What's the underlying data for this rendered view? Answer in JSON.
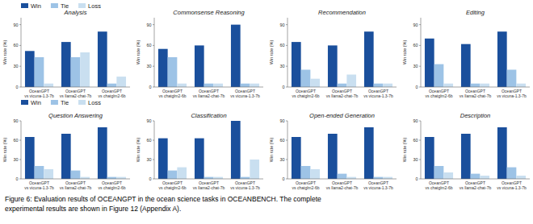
{
  "chart_data": [
    {
      "type": "bar",
      "title": "Analysis",
      "y_label": "Win rate (%)",
      "categories": [
        "OceanGPT\nvs vicuna-1.3-7b",
        "OceanGPT\nvs llama2-chat-7b",
        "OceanGPT\nvs chatglm2-6b"
      ],
      "series": [
        {
          "name": "Win",
          "color": "#1a4f9c",
          "values": [
            52,
            65,
            80
          ]
        },
        {
          "name": "Tie",
          "color": "#9dc3e6",
          "values": [
            43,
            43,
            5
          ]
        },
        {
          "name": "Loss",
          "color": "#c9dff0",
          "values": [
            5,
            50,
            15
          ]
        }
      ],
      "ylim": [
        0,
        100
      ],
      "yticks": [
        0,
        30,
        60,
        90
      ],
      "legend": "upper left"
    },
    {
      "type": "bar",
      "title": "Commonsense Reasoning",
      "y_label": "Win rate (%)",
      "categories": [
        "OceanGPT\nvs chatglm2-6b",
        "OceanGPT\nvs llama2-chat-7b",
        "OceanGPT\nvs vicuna-1.3-7b"
      ],
      "series": [
        {
          "name": "Win",
          "color": "#1a4f9c",
          "values": [
            55,
            60,
            90
          ]
        },
        {
          "name": "Tie",
          "color": "#9dc3e6",
          "values": [
            43,
            5,
            5
          ]
        },
        {
          "name": "Loss",
          "color": "#c9dff0",
          "values": [
            5,
            5,
            5
          ]
        }
      ],
      "ylim": [
        0,
        100
      ],
      "yticks": [
        0,
        30,
        60,
        90
      ]
    },
    {
      "type": "bar",
      "title": "Recommendation",
      "y_label": "Win rate (%)",
      "categories": [
        "OceanGPT\nvs chatglm2-6b",
        "OceanGPT\nvs llama2-chat-7b",
        "OceanGPT\nvs vicuna-1.3-7b"
      ],
      "series": [
        {
          "name": "Win",
          "color": "#1a4f9c",
          "values": [
            65,
            60,
            80
          ]
        },
        {
          "name": "Tie",
          "color": "#9dc3e6",
          "values": [
            25,
            5,
            5
          ]
        },
        {
          "name": "Loss",
          "color": "#c9dff0",
          "values": [
            12,
            18,
            5
          ]
        }
      ],
      "ylim": [
        0,
        100
      ],
      "yticks": [
        0,
        30,
        60,
        90
      ]
    },
    {
      "type": "bar",
      "title": "Editing",
      "y_label": "Win rate (%)",
      "categories": [
        "OceanGPT\nvs chatglm2-6b",
        "OceanGPT\nvs llama2-chat-7b",
        "OceanGPT\nvs vicuna-1.3-7b"
      ],
      "series": [
        {
          "name": "Win",
          "color": "#1a4f9c",
          "values": [
            70,
            62,
            80
          ]
        },
        {
          "name": "Tie",
          "color": "#9dc3e6",
          "values": [
            33,
            5,
            25
          ]
        },
        {
          "name": "Loss",
          "color": "#c9dff0",
          "values": [
            5,
            5,
            5
          ]
        }
      ],
      "ylim": [
        0,
        100
      ],
      "yticks": [
        0,
        30,
        60,
        90
      ]
    },
    {
      "type": "bar",
      "title": "Question Answering",
      "y_label": "Win rate (%)",
      "categories": [
        "OceanGPT\nvs vicuna-1.3-7b",
        "OceanGPT\nvs llama2-chat-7b",
        "OceanGPT\nvs chatglm2-6b"
      ],
      "series": [
        {
          "name": "Win",
          "color": "#1a4f9c",
          "values": [
            65,
            70,
            80
          ]
        },
        {
          "name": "Tie",
          "color": "#9dc3e6",
          "values": [
            20,
            13,
            3
          ]
        },
        {
          "name": "Loss",
          "color": "#c9dff0",
          "values": [
            15,
            3,
            3
          ]
        }
      ],
      "ylim": [
        0,
        90
      ],
      "yticks": [
        0,
        30,
        60,
        90
      ],
      "legend": "upper left"
    },
    {
      "type": "bar",
      "title": "Classification",
      "y_label": "Win rate (%)",
      "categories": [
        "OceanGPT\nvs chatglm2-6b",
        "OceanGPT\nvs llama2-chat-7b",
        "OceanGPT\nvs vicuna-1.3-7b"
      ],
      "series": [
        {
          "name": "Win",
          "color": "#1a4f9c",
          "values": [
            63,
            63,
            90
          ]
        },
        {
          "name": "Tie",
          "color": "#9dc3e6",
          "values": [
            13,
            3,
            3
          ]
        },
        {
          "name": "Loss",
          "color": "#c9dff0",
          "values": [
            18,
            3,
            30
          ]
        }
      ],
      "ylim": [
        0,
        90
      ],
      "yticks": [
        0,
        30,
        60,
        90
      ]
    },
    {
      "type": "bar",
      "title": "Open-ended Generation",
      "y_label": "Win rate (%)",
      "categories": [
        "OceanGPT\nvs chatglm2-6b",
        "OceanGPT\nvs llama2-chat-7b",
        "OceanGPT\nvs vicuna-1.3-7b"
      ],
      "series": [
        {
          "name": "Win",
          "color": "#1a4f9c",
          "values": [
            65,
            70,
            80
          ]
        },
        {
          "name": "Tie",
          "color": "#9dc3e6",
          "values": [
            20,
            8,
            3
          ]
        },
        {
          "name": "Loss",
          "color": "#c9dff0",
          "values": [
            15,
            3,
            3
          ]
        }
      ],
      "ylim": [
        0,
        90
      ],
      "yticks": [
        0,
        30,
        60,
        90
      ]
    },
    {
      "type": "bar",
      "title": "Description",
      "y_label": "Win rate (%)",
      "categories": [
        "OceanGPT\nvs chatglm2-6b",
        "OceanGPT\nvs llama2-chat-7b",
        "OceanGPT\nvs vicuna-1.3-7b"
      ],
      "series": [
        {
          "name": "Win",
          "color": "#1a4f9c",
          "values": [
            65,
            70,
            80
          ]
        },
        {
          "name": "Tie",
          "color": "#9dc3e6",
          "values": [
            20,
            8,
            18
          ]
        },
        {
          "name": "Loss",
          "color": "#c9dff0",
          "values": [
            10,
            5,
            5
          ]
        }
      ],
      "ylim": [
        0,
        90
      ],
      "yticks": [
        0,
        30,
        60,
        90
      ]
    }
  ],
  "caption": [
    "Figure 6: Evaluation results of OCEANGPT in the ocean science tasks in OCEANBENCH.  The complete",
    "experimental results are shown in Figure 12 (Appendix A)."
  ]
}
